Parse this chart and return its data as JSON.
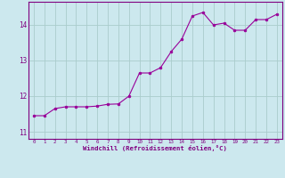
{
  "x": [
    0,
    1,
    2,
    3,
    4,
    5,
    6,
    7,
    8,
    9,
    10,
    11,
    12,
    13,
    14,
    15,
    16,
    17,
    18,
    19,
    20,
    21,
    22,
    23
  ],
  "y": [
    11.45,
    11.45,
    11.65,
    11.7,
    11.7,
    11.7,
    11.72,
    11.77,
    11.78,
    12.0,
    12.65,
    12.65,
    12.8,
    13.25,
    13.6,
    14.25,
    14.35,
    14.0,
    14.05,
    13.85,
    13.85,
    14.15,
    14.15,
    14.3
  ],
  "line_color": "#990099",
  "marker_color": "#990099",
  "bg_color": "#cce8ee",
  "grid_color": "#aacccc",
  "xlabel": "Windchill (Refroidissement éolien,°C)",
  "xlabel_color": "#800080",
  "tick_color": "#800080",
  "spine_color": "#800080",
  "ylim": [
    10.8,
    14.65
  ],
  "xlim": [
    -0.5,
    23.5
  ],
  "yticks": [
    11,
    12,
    13,
    14
  ],
  "xticks": [
    0,
    1,
    2,
    3,
    4,
    5,
    6,
    7,
    8,
    9,
    10,
    11,
    12,
    13,
    14,
    15,
    16,
    17,
    18,
    19,
    20,
    21,
    22,
    23
  ],
  "figsize": [
    3.2,
    2.0
  ],
  "dpi": 100
}
